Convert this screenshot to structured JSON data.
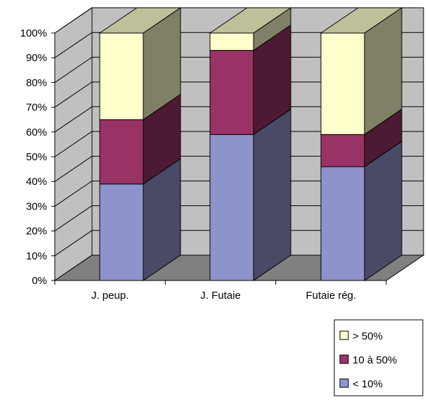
{
  "chart_data": {
    "type": "bar",
    "stacked": true,
    "percent": true,
    "three_d": true,
    "categories": [
      "J. peup.",
      "J. Futaie",
      "Futaie rég."
    ],
    "series": [
      {
        "name": "< 10%",
        "values": [
          39,
          59,
          46
        ],
        "color": "#8f93cc"
      },
      {
        "name": "10 à 50%",
        "values": [
          26,
          34,
          13
        ],
        "color": "#993366"
      },
      {
        "name": "> 50%",
        "values": [
          35,
          7,
          41
        ],
        "color": "#ffffcc"
      }
    ],
    "ylim": [
      0,
      100
    ],
    "yticks": [
      "0%",
      "10%",
      "20%",
      "30%",
      "40%",
      "50%",
      "60%",
      "70%",
      "80%",
      "90%",
      "100%"
    ],
    "grid": true,
    "legend": "bottom-right",
    "legend_order": [
      2,
      1,
      0
    ],
    "colors": {
      "wall": "#c0c0c0",
      "floor": "#808080"
    }
  }
}
